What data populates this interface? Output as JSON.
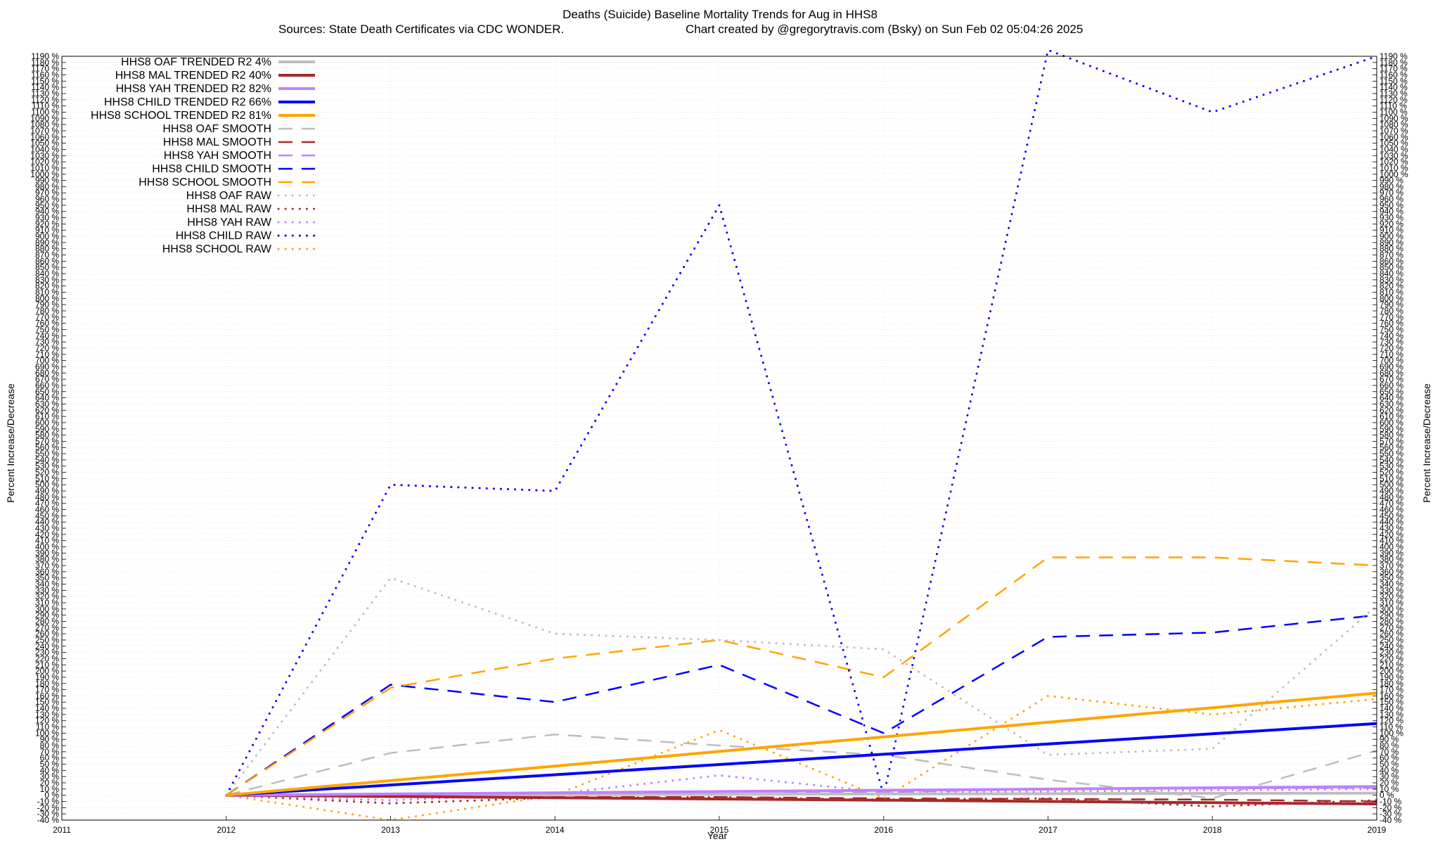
{
  "chart_data": {
    "type": "line",
    "title": "Deaths (Suicide)  Baseline Mortality Trends for Aug in HHS8",
    "subtitle_left": "Sources: State Death Certificates via CDC WONDER.",
    "subtitle_right": "Chart created by @gregorytravis.com (Bsky) on Sun Feb 02 05:04:26 2025",
    "xlabel": "Year",
    "ylabel": "Percent Increase/Decrease",
    "y2label": "Percent Increase/Decrease",
    "xlim": [
      2011,
      2019
    ],
    "ylim": [
      -40,
      1190
    ],
    "ytick_step": 10,
    "ytick_suffix": " %",
    "xticks": [
      2011,
      2012,
      2013,
      2014,
      2015,
      2016,
      2017,
      2018,
      2019
    ],
    "x": [
      2012,
      2013,
      2014,
      2015,
      2016,
      2017,
      2018,
      2019
    ],
    "grid": true,
    "legend_position": "top-left",
    "series": [
      {
        "name": "HHS8 OAF TRENDED R2  4%",
        "style": "solid",
        "color": "#bebebe",
        "values": [
          0,
          0.5,
          1,
          1.5,
          2,
          2.5,
          3,
          3.5
        ]
      },
      {
        "name": "HHS8 MAL TRENDED R2  40%",
        "style": "solid",
        "color": "#a52a2a",
        "values": [
          0,
          -2,
          -4,
          -6,
          -8,
          -10,
          -12,
          -14
        ]
      },
      {
        "name": "HHS8 YAH TRENDED R2  82%",
        "style": "solid",
        "color": "#c080ff",
        "values": [
          0,
          2,
          4,
          6,
          8,
          10,
          12,
          14
        ]
      },
      {
        "name": "HHS8 CHILD TRENDED R2  66%",
        "style": "solid",
        "color": "#0000ff",
        "values": [
          0,
          16.5,
          33,
          49.5,
          66,
          82.5,
          99,
          115.5
        ]
      },
      {
        "name": "HHS8 SCHOOL TRENDED R2  81%",
        "style": "solid",
        "color": "#ffa500",
        "values": [
          0,
          23.5,
          47,
          70.5,
          94,
          117.5,
          141,
          164.5
        ]
      },
      {
        "name": "HHS8 OAF SMOOTH",
        "style": "dashed",
        "color": "#bebebe",
        "values": [
          0,
          68,
          98,
          80,
          65,
          25,
          -5,
          72
        ]
      },
      {
        "name": "HHS8 MAL SMOOTH",
        "style": "dashed",
        "color": "#a52a2a",
        "values": [
          0,
          -3,
          -3,
          -3,
          -5,
          -6,
          -7,
          -10
        ]
      },
      {
        "name": "HHS8 YAH SMOOTH",
        "style": "dashed",
        "color": "#c080ff",
        "values": [
          0,
          2,
          4,
          6,
          5,
          10,
          11,
          12
        ]
      },
      {
        "name": "HHS8 CHILD SMOOTH",
        "style": "dashed",
        "color": "#0000ff",
        "values": [
          0,
          178,
          150,
          210,
          100,
          255,
          262,
          290
        ]
      },
      {
        "name": "HHS8 SCHOOL SMOOTH",
        "style": "dashed",
        "color": "#ffa500",
        "values": [
          0,
          173,
          220,
          250,
          190,
          383,
          383,
          370
        ]
      },
      {
        "name": "HHS8 OAF RAW",
        "style": "dotted",
        "color": "#bebebe",
        "values": [
          0,
          350,
          260,
          250,
          235,
          65,
          75,
          305
        ]
      },
      {
        "name": "HHS8 MAL RAW",
        "style": "dotted",
        "color": "#a52a2a",
        "values": [
          0,
          -13,
          -4,
          -3,
          -7,
          -5,
          -18,
          -8
        ]
      },
      {
        "name": "HHS8 YAH RAW",
        "style": "dotted",
        "color": "#c080ff",
        "values": [
          0,
          -8,
          2,
          32,
          5,
          6,
          8,
          10
        ]
      },
      {
        "name": "HHS8 CHILD RAW",
        "style": "dotted",
        "color": "#0000ff",
        "values": [
          0,
          500,
          490,
          950,
          0,
          1200,
          1100,
          1190
        ]
      },
      {
        "name": "HHS8 SCHOOL RAW",
        "style": "dotted",
        "color": "#ffa500",
        "values": [
          0,
          -40,
          0,
          105,
          -5,
          160,
          130,
          155
        ]
      }
    ]
  }
}
